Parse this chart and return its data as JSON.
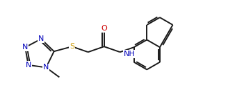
{
  "bg": "#ffffff",
  "bc": "#1a1a1a",
  "cN": "#0000bb",
  "cO": "#cc0000",
  "cS": "#cc9900",
  "lw": 1.4,
  "fs": 8.0,
  "figsize": [
    3.51,
    1.53
  ],
  "dpi": 100,
  "xlim": [
    0,
    3.51
  ],
  "ylim": [
    0,
    1.53
  ]
}
